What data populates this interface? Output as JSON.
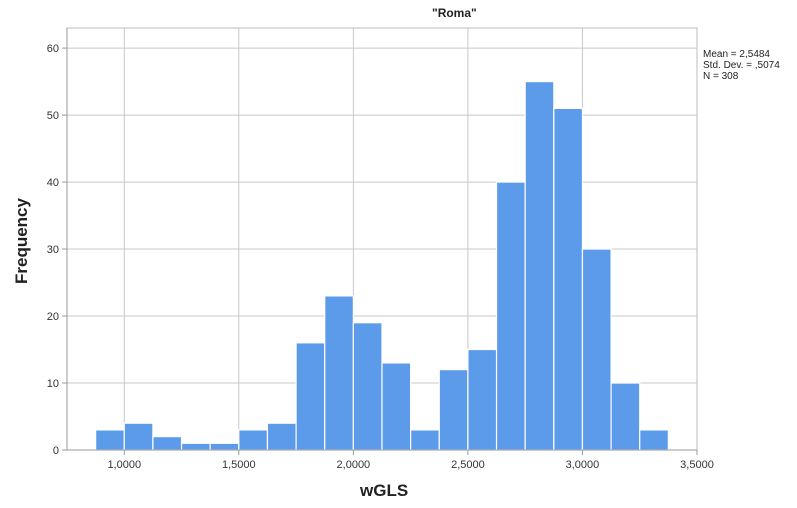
{
  "chart_data": {
    "type": "histogram",
    "title": "\"Roma\"",
    "xlabel": "wGLS",
    "ylabel": "Frequency",
    "xlim": [
      0.75,
      3.5
    ],
    "ylim": [
      0,
      63
    ],
    "xticks": [
      1.0,
      1.5,
      2.0,
      2.5,
      3.0,
      3.5
    ],
    "xtick_labels": [
      "1,0000",
      "1,5000",
      "2,0000",
      "2,5000",
      "3,0000",
      "3,5000"
    ],
    "yticks": [
      0,
      10,
      20,
      30,
      40,
      50,
      60
    ],
    "ytick_labels": [
      "0",
      "10",
      "20",
      "30",
      "40",
      "50",
      "60"
    ],
    "bin_width": 0.125,
    "bin_start": 0.875,
    "values": [
      3,
      4,
      2,
      1,
      1,
      3,
      4,
      16,
      23,
      19,
      13,
      3,
      12,
      15,
      40,
      55,
      51,
      30,
      10,
      3
    ],
    "bar_color": "#5b9bea",
    "stats": {
      "mean": "Mean = 2,5484",
      "sd": "Std. Dev. = ,5074",
      "n": "N = 308"
    },
    "grid": true
  }
}
